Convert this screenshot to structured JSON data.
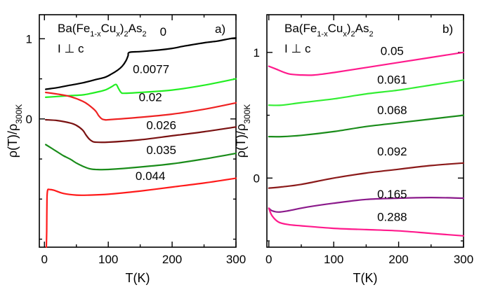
{
  "chart_data": [
    {
      "type": "line",
      "panel_label": "a)",
      "formula": {
        "base": "Ba(Fe",
        "sub1": "1-x",
        "mid": "Cu",
        "sub2": "x",
        "end": ")",
        "sub3": "2",
        "tail": "As",
        "sub4": "2"
      },
      "orientation_note": "I ⊥ c",
      "ylabel": {
        "main": "ρ(T)/ρ",
        "sub": "300K"
      },
      "xlabel": "T(K)",
      "xlim": [
        -8,
        300
      ],
      "ylim": [
        -1.6,
        1.3
      ],
      "xticks": [
        0,
        100,
        200,
        300
      ],
      "xticks_minor": [
        50,
        150,
        250
      ],
      "yticks": [
        1,
        0
      ],
      "yticks_minor": [
        0.5,
        -0.5,
        -1.0,
        -1.5
      ],
      "series": [
        {
          "name": "0",
          "color": "#000000",
          "label_at": [
            186,
            1.04
          ],
          "x": [
            2,
            20,
            40,
            60,
            80,
            95,
            105,
            115,
            122,
            128,
            131,
            133,
            150,
            180,
            200,
            220,
            250,
            270,
            290,
            300
          ],
          "y": [
            0.37,
            0.39,
            0.42,
            0.45,
            0.49,
            0.52,
            0.56,
            0.61,
            0.66,
            0.73,
            0.79,
            0.83,
            0.84,
            0.86,
            0.88,
            0.91,
            0.95,
            0.97,
            1.0,
            1.01
          ]
        },
        {
          "name": "0.0077",
          "color": "#22ee22",
          "label_at": [
            167,
            0.57
          ],
          "x": [
            2,
            20,
            40,
            60,
            80,
            95,
            105,
            112,
            116,
            120,
            125,
            150,
            200,
            250,
            300
          ],
          "y": [
            0.27,
            0.28,
            0.29,
            0.3,
            0.33,
            0.36,
            0.4,
            0.43,
            0.38,
            0.33,
            0.32,
            0.33,
            0.36,
            0.42,
            0.5
          ]
        },
        {
          "name": "0.02",
          "color": "#ee2222",
          "label_at": [
            166,
            0.22
          ],
          "x": [
            2,
            20,
            40,
            60,
            70,
            80,
            85,
            90,
            95,
            100,
            150,
            200,
            250,
            300
          ],
          "y": [
            0.33,
            0.31,
            0.28,
            0.22,
            0.17,
            0.1,
            0.04,
            0.0,
            -0.01,
            -0.01,
            0.02,
            0.06,
            0.12,
            0.2
          ]
        },
        {
          "name": "0.026",
          "color": "#7a1212",
          "label_at": [
            183,
            -0.13
          ],
          "x": [
            2,
            20,
            40,
            50,
            60,
            65,
            70,
            75,
            80,
            100,
            150,
            200,
            250,
            300
          ],
          "y": [
            -0.01,
            -0.02,
            -0.05,
            -0.08,
            -0.14,
            -0.2,
            -0.25,
            -0.28,
            -0.29,
            -0.29,
            -0.26,
            -0.21,
            -0.16,
            -0.1
          ]
        },
        {
          "name": "0.035",
          "color": "#1a8c1a",
          "label_at": [
            183,
            -0.44
          ],
          "x": [
            2,
            10,
            20,
            30,
            40,
            50,
            60,
            70,
            80,
            100,
            150,
            200,
            250,
            300
          ],
          "y": [
            -0.32,
            -0.36,
            -0.41,
            -0.46,
            -0.5,
            -0.55,
            -0.59,
            -0.62,
            -0.63,
            -0.63,
            -0.6,
            -0.56,
            -0.5,
            -0.43
          ]
        },
        {
          "name": "0.044",
          "color": "#ff1a1a",
          "label_at": [
            166,
            -0.76
          ],
          "x": [
            3,
            3.5,
            4,
            5,
            8,
            15,
            30,
            50,
            70,
            100,
            150,
            200,
            250,
            300
          ],
          "y": [
            -1.6,
            -1.4,
            -1.0,
            -0.89,
            -0.88,
            -0.89,
            -0.93,
            -0.95,
            -0.95,
            -0.94,
            -0.9,
            -0.85,
            -0.8,
            -0.74
          ]
        }
      ]
    },
    {
      "type": "line",
      "panel_label": "b)",
      "formula": {
        "base": "Ba(Fe",
        "sub1": "1-x",
        "mid": "Cu",
        "sub2": "x",
        "end": ")",
        "sub3": "2",
        "tail": "As",
        "sub4": "2"
      },
      "orientation_note": "I ⊥ c",
      "ylabel": {
        "main": "ρ(T)/ρ",
        "sub": "300K"
      },
      "xlabel": "T(K)",
      "xlim": [
        -3,
        300
      ],
      "ylim": [
        -0.55,
        1.3
      ],
      "xticks": [
        0,
        100,
        200,
        300
      ],
      "xticks_minor": [
        50,
        150,
        250
      ],
      "yticks": [
        1,
        0
      ],
      "yticks_minor": [
        0.5,
        -0.5
      ],
      "series": [
        {
          "name": "0.05",
          "color": "#ff1a8c",
          "label_at": [
            190,
            0.98
          ],
          "x": [
            0,
            10,
            30,
            50,
            70,
            100,
            150,
            200,
            250,
            300
          ],
          "y": [
            0.89,
            0.87,
            0.83,
            0.82,
            0.82,
            0.84,
            0.88,
            0.92,
            0.96,
            1.0
          ]
        },
        {
          "name": "0.061",
          "color": "#33ee33",
          "label_at": [
            190,
            0.75
          ],
          "x": [
            0,
            20,
            50,
            100,
            150,
            200,
            250,
            300
          ],
          "y": [
            0.58,
            0.58,
            0.6,
            0.63,
            0.67,
            0.7,
            0.74,
            0.78
          ]
        },
        {
          "name": "0.068",
          "color": "#1a8c1a",
          "label_at": [
            190,
            0.51
          ],
          "x": [
            0,
            20,
            50,
            100,
            150,
            200,
            250,
            300
          ],
          "y": [
            0.33,
            0.33,
            0.34,
            0.37,
            0.41,
            0.44,
            0.47,
            0.5
          ]
        },
        {
          "name": "0.092",
          "color": "#8b1a1a",
          "label_at": [
            190,
            0.18
          ],
          "x": [
            0,
            20,
            50,
            100,
            150,
            200,
            250,
            300
          ],
          "y": [
            -0.08,
            -0.07,
            -0.05,
            0.0,
            0.04,
            0.07,
            0.1,
            0.12
          ]
        },
        {
          "name": "0.165",
          "color": "#8b1a8b",
          "label_at": [
            190,
            -0.16
          ],
          "x": [
            0,
            5,
            15,
            30,
            60,
            100,
            150,
            200,
            250,
            300
          ],
          "y": [
            -0.24,
            -0.26,
            -0.27,
            -0.26,
            -0.23,
            -0.2,
            -0.17,
            -0.16,
            -0.155,
            -0.16
          ]
        },
        {
          "name": "0.288",
          "color": "#ff1a8c",
          "label_at": [
            190,
            -0.34
          ],
          "x": [
            0,
            5,
            15,
            30,
            50,
            100,
            150,
            200,
            250,
            300
          ],
          "y": [
            -0.24,
            -0.3,
            -0.35,
            -0.37,
            -0.38,
            -0.4,
            -0.41,
            -0.42,
            -0.44,
            -0.46
          ]
        }
      ]
    }
  ]
}
